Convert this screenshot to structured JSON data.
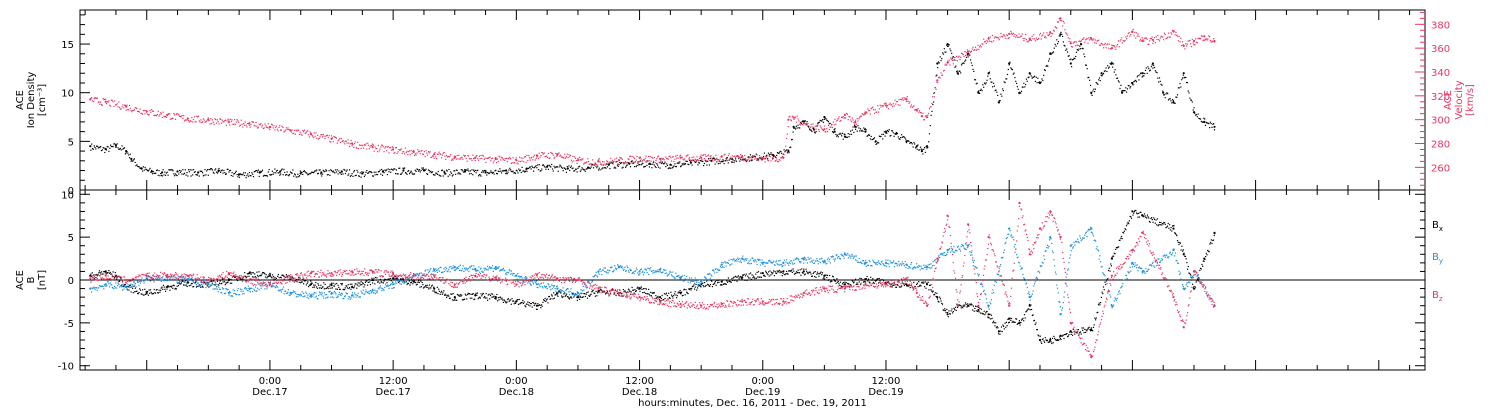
{
  "chart_data": [
    {
      "type": "scatter",
      "panel": "top",
      "ylabel_lines": [
        "ACE",
        "Ion Density",
        "[cm⁻³]"
      ],
      "y2label_lines": [
        "ACE",
        "Velocity",
        "[km/s]"
      ],
      "ylim": [
        0,
        18.5
      ],
      "y2lim": [
        241,
        392
      ],
      "yticks": [
        0,
        5,
        10,
        15
      ],
      "y2ticks": [
        260,
        280,
        300,
        320,
        340,
        360,
        380
      ],
      "grid": false,
      "colors": {
        "density": "#000000",
        "velocity": "#e8355f"
      },
      "series": [
        {
          "key": "density",
          "axis": "left",
          "x": [
            -17.5,
            -16,
            -15,
            -14,
            -13.5,
            -12.5,
            -11.5,
            -10.5,
            -9,
            -7,
            -5,
            -3,
            -1,
            1,
            3,
            5,
            7,
            9,
            11,
            13,
            15,
            17,
            19,
            21,
            23,
            25,
            27,
            29,
            31,
            33,
            35,
            37,
            39,
            41,
            43,
            45,
            47,
            49,
            50.5,
            51,
            52,
            53,
            54,
            55,
            56,
            57,
            58,
            59,
            60,
            61,
            62,
            63,
            63.5,
            64,
            65,
            66,
            67,
            68,
            69,
            70,
            71,
            72,
            73,
            74,
            75,
            76,
            77,
            78,
            79,
            80,
            81,
            82,
            83,
            84,
            85,
            86,
            87,
            88,
            89,
            90,
            91,
            92
          ],
          "y": [
            4.5,
            4.2,
            4.6,
            4.0,
            3.2,
            2.2,
            1.9,
            1.8,
            1.9,
            1.8,
            2.0,
            1.6,
            1.8,
            1.9,
            1.7,
            1.8,
            1.9,
            1.7,
            1.9,
            2.0,
            2.0,
            1.8,
            1.9,
            1.8,
            2.0,
            2.2,
            2.4,
            2.2,
            2.3,
            2.6,
            2.7,
            2.7,
            2.6,
            2.8,
            3.0,
            3.2,
            3.4,
            3.6,
            4.0,
            6.5,
            7.0,
            6.2,
            7.5,
            6.0,
            5.5,
            6.5,
            6.0,
            5.0,
            6.0,
            5.8,
            5.0,
            4.5,
            4.0,
            4.5,
            13.0,
            15.0,
            12.0,
            14.0,
            10.0,
            12.0,
            9.0,
            13.0,
            10.0,
            12.0,
            11.0,
            14.0,
            16.0,
            13.0,
            15.0,
            10.0,
            12.0,
            13.0,
            10.0,
            11.0,
            12.0,
            13.0,
            10.0,
            9.0,
            12.0,
            8.0,
            7.0,
            6.5
          ]
        },
        {
          "key": "velocity",
          "axis": "right",
          "x": [
            -17.5,
            -16,
            -14,
            -12,
            -10,
            -8,
            -6,
            -4,
            -2,
            0,
            2,
            4,
            6,
            8,
            10,
            12,
            14,
            16,
            18,
            20,
            22,
            24,
            26,
            28,
            30,
            32,
            34,
            36,
            38,
            40,
            42,
            44,
            46,
            48,
            50,
            50.5,
            51,
            52,
            54,
            56,
            57,
            58,
            60,
            62,
            63,
            63.5,
            64,
            65,
            66,
            68,
            70,
            72,
            74,
            76,
            77,
            78,
            80,
            82,
            84,
            85,
            86,
            88,
            89,
            90,
            91,
            92
          ],
          "y": [
            317,
            315,
            311,
            307,
            304,
            301,
            300,
            298,
            297,
            294,
            291,
            288,
            284,
            280,
            277,
            275,
            273,
            271,
            269,
            268,
            267,
            266,
            270,
            271,
            266,
            265,
            266,
            268,
            267,
            268,
            268,
            269,
            269,
            268,
            268,
            300,
            302,
            297,
            292,
            304,
            298,
            306,
            312,
            317,
            308,
            303,
            302,
            333,
            348,
            357,
            368,
            372,
            368,
            373,
            385,
            364,
            368,
            360,
            374,
            366,
            367,
            374,
            362,
            366,
            370,
            366
          ]
        }
      ]
    },
    {
      "type": "scatter",
      "panel": "bottom",
      "ylabel_lines": [
        "ACE",
        "B",
        "[nT]"
      ],
      "ylim": [
        -10.5,
        10.5
      ],
      "yticks": [
        -10,
        -5,
        0,
        5,
        10
      ],
      "zero_line": true,
      "grid": false,
      "legend_position": "right",
      "colors": {
        "bx": "#000000",
        "by": "#1a8fe0",
        "bz": "#e8355f"
      },
      "series": [
        {
          "key": "bx",
          "x": [
            -17.5,
            -16,
            -15,
            -14,
            -12,
            -10,
            -8,
            -6,
            -4,
            -2,
            0,
            2,
            4,
            6,
            8,
            10,
            12,
            14,
            16,
            18,
            20,
            22,
            24,
            26,
            28,
            30,
            32,
            34,
            36,
            38,
            40,
            42,
            44,
            46,
            48,
            50,
            52,
            54,
            56,
            58,
            60,
            62,
            64,
            65,
            66,
            67,
            68,
            69,
            70,
            71,
            72,
            73,
            74,
            75,
            76,
            77,
            78,
            80,
            82,
            84,
            85,
            88,
            89,
            90,
            91,
            92
          ],
          "y": [
            0.5,
            1.0,
            0.5,
            -0.8,
            -1.5,
            -0.8,
            -0.3,
            -0.5,
            0,
            0.8,
            0.5,
            0.3,
            -0.5,
            -0.6,
            -0.8,
            0,
            0.2,
            -0.2,
            -1.0,
            -2.0,
            -1.8,
            -2.0,
            -2.5,
            -3.0,
            -1.5,
            -2.0,
            -1.3,
            -1.5,
            -1.0,
            -2.0,
            -1.5,
            -0.5,
            -0.2,
            0.3,
            0.8,
            1.0,
            1.0,
            0.5,
            -0.5,
            0.1,
            -0.3,
            -0.5,
            -0.5,
            -2.0,
            -4.0,
            -3.0,
            -3.0,
            -3.5,
            -4.0,
            -6.0,
            -4.5,
            -5.0,
            -3.0,
            -7.0,
            -7.0,
            -6.5,
            -6.0,
            -5.8,
            2.5,
            8.0,
            7.5,
            6.0,
            3.0,
            -1.0,
            2.5,
            5.5
          ]
        },
        {
          "key": "by",
          "x": [
            -17.5,
            -16,
            -14,
            -12,
            -10,
            -8,
            -6,
            -4,
            -2,
            0,
            2,
            4,
            6,
            8,
            10,
            12,
            14,
            16,
            18,
            20,
            22,
            24,
            26,
            28,
            30,
            32,
            34,
            36,
            38,
            40,
            42,
            44,
            46,
            48,
            50,
            52,
            54,
            56,
            58,
            60,
            62,
            64,
            66,
            68,
            70,
            72,
            74,
            76,
            77,
            78,
            80,
            82,
            84,
            85,
            88,
            89,
            90,
            92
          ],
          "y": [
            -1.0,
            -0.5,
            -0.8,
            0.2,
            0.3,
            0,
            -0.5,
            -1.5,
            -1.0,
            -0.5,
            -1.5,
            -1.8,
            -1.6,
            -1.8,
            -1.2,
            -0.5,
            0.5,
            1.2,
            1.5,
            1.3,
            1.5,
            0.5,
            -0.5,
            -1.0,
            -1.5,
            1.0,
            1.5,
            1.0,
            1.2,
            0.3,
            -0.2,
            1.8,
            2.5,
            2.0,
            2.0,
            2.4,
            2.2,
            3.0,
            2.0,
            2.0,
            1.8,
            1.5,
            3.5,
            4.0,
            -3.0,
            6.0,
            -2.0,
            5.0,
            -4.0,
            4.0,
            6.0,
            -3.0,
            2.0,
            1.0,
            3.5,
            -1.0,
            1.0,
            -3.0
          ]
        },
        {
          "key": "bz",
          "x": [
            -17.5,
            -16,
            -14,
            -12,
            -10,
            -8,
            -6,
            -4,
            -2,
            0,
            2,
            4,
            6,
            8,
            10,
            12,
            14,
            16,
            18,
            20,
            22,
            24,
            26,
            28,
            30,
            32,
            34,
            36,
            38,
            40,
            42,
            44,
            46,
            48,
            50,
            52,
            54,
            56,
            58,
            60,
            62,
            63,
            64,
            65,
            66,
            67,
            68,
            69,
            70,
            72,
            73,
            74,
            75,
            76,
            77,
            78,
            80,
            82,
            84,
            85,
            88,
            89,
            90,
            92
          ],
          "y": [
            0.2,
            0.5,
            0,
            0.5,
            0.6,
            0.5,
            0,
            0.8,
            0,
            -0.5,
            0.3,
            0.8,
            0.8,
            1.0,
            1.0,
            0.7,
            0.5,
            0.5,
            -0.5,
            0.5,
            0.3,
            -0.5,
            0.6,
            0.2,
            0,
            -1.0,
            -1.5,
            -2.0,
            -2.5,
            -2.8,
            -3.0,
            -2.8,
            -2.5,
            -2.5,
            -2.5,
            -1.5,
            -1.0,
            -1.0,
            -0.5,
            -0.5,
            0.2,
            -1.5,
            -3.0,
            2.5,
            7.5,
            -3.0,
            6.5,
            -3.0,
            5.0,
            -3.0,
            9.0,
            3.0,
            6.0,
            8.0,
            5.0,
            -5.0,
            -9.0,
            0.5,
            3.5,
            5.5,
            -2.0,
            -5.5,
            1.0,
            -3.0
          ]
        }
      ]
    }
  ],
  "legend": [
    {
      "label": "B",
      "sub": "x",
      "color": "#000000"
    },
    {
      "label": "B",
      "sub": "y",
      "color": "#1a8fe0"
    },
    {
      "label": "B",
      "sub": "z",
      "color": "#e8355f"
    }
  ],
  "x_axis": {
    "range_hours": [
      -18.5,
      112.5
    ],
    "ticks": [
      {
        "hour": 0,
        "time": "0:00",
        "date": "Dec.17"
      },
      {
        "hour": 12,
        "time": "12:00",
        "date": "Dec.17"
      },
      {
        "hour": 24,
        "time": "0:00",
        "date": "Dec.18"
      },
      {
        "hour": 36,
        "time": "12:00",
        "date": "Dec.18"
      },
      {
        "hour": 48,
        "time": "0:00",
        "date": "Dec.19"
      },
      {
        "hour": 60,
        "time": "12:00",
        "date": "Dec.19"
      }
    ],
    "label": "hours:minutes, Dec. 16, 2011 - Dec. 19, 2011"
  }
}
